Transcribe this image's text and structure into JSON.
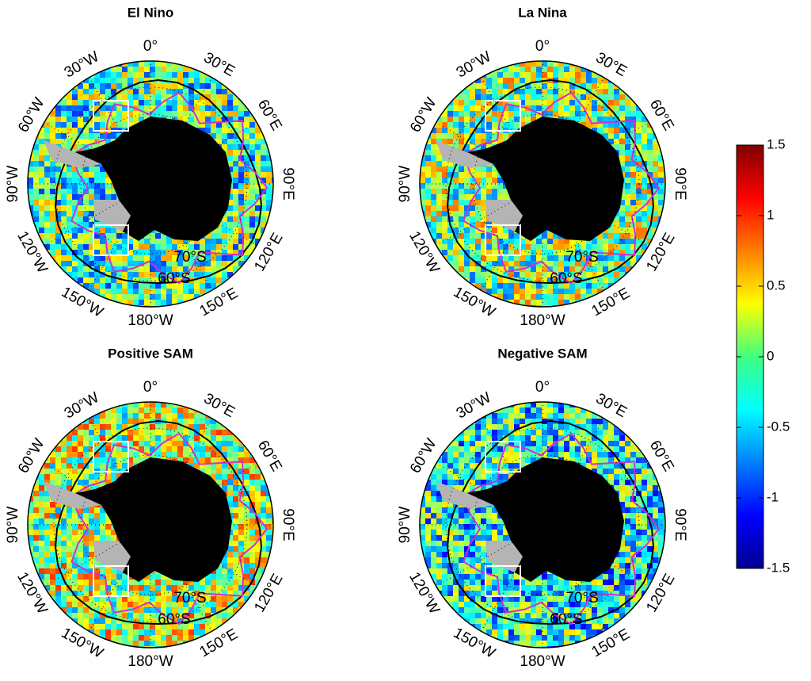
{
  "panels": [
    {
      "title": "El Nino"
    },
    {
      "title": "La Nina"
    },
    {
      "title": "Positive SAM"
    },
    {
      "title": "Negative SAM"
    }
  ],
  "longitude_labels": [
    "0°",
    "30°E",
    "60°E",
    "90°E",
    "120°E",
    "150°E",
    "180°W",
    "150°W",
    "120°W",
    "90°W",
    "60°W",
    "30°W"
  ],
  "latitude_labels": [
    "70°S",
    "60°S"
  ],
  "colorbar": {
    "lim": [
      -1.5,
      1.5
    ],
    "ticks": [
      1.5,
      1,
      0.5,
      0,
      -0.5,
      -1,
      -1.5
    ]
  }
}
